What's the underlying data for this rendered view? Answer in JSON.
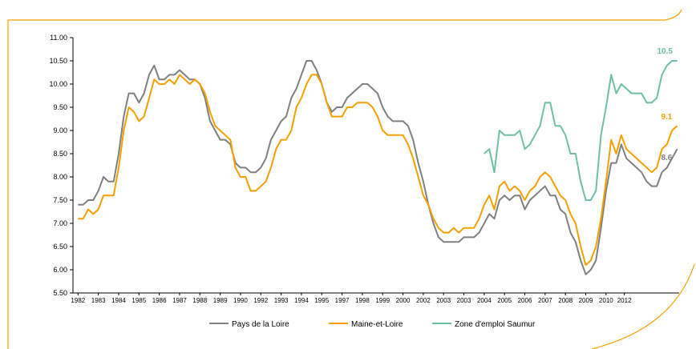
{
  "chart_data": {
    "type": "line",
    "title": "",
    "xlabel": "",
    "ylabel": "",
    "ylim": [
      5.5,
      11.0
    ],
    "y_ticks": [
      "5.50",
      "6.00",
      "6.50",
      "7.00",
      "7.50",
      "8.00",
      "8.50",
      "9.00",
      "9.50",
      "10.00",
      "10.50",
      "11.00"
    ],
    "x_ticks": [
      {
        "label": "1982",
        "x": 1982.0
      },
      {
        "label": "1983",
        "x": 1983.0
      },
      {
        "label": "1984",
        "x": 1984.0
      },
      {
        "label": "1985",
        "x": 1985.0
      },
      {
        "label": "1986",
        "x": 1986.0
      },
      {
        "label": "1987",
        "x": 1987.0
      },
      {
        "label": "1988",
        "x": 1988.0
      },
      {
        "label": "1989",
        "x": 1989.0
      },
      {
        "label": "1990",
        "x": 1990.0
      },
      {
        "label": "1992",
        "x": 1991.0
      },
      {
        "label": "1993",
        "x": 1992.0
      },
      {
        "label": "1994",
        "x": 1993.0
      },
      {
        "label": "1995",
        "x": 1994.0
      },
      {
        "label": "1997",
        "x": 1995.0
      },
      {
        "label": "1998",
        "x": 1996.0
      },
      {
        "label": "1999",
        "x": 1997.0
      },
      {
        "label": "2000",
        "x": 1998.0
      },
      {
        "label": "2002",
        "x": 1999.0
      },
      {
        "label": "2003",
        "x": 2000.0
      },
      {
        "label": "2003",
        "x": 2001.0
      },
      {
        "label": "2004",
        "x": 2002.0
      },
      {
        "label": "2005",
        "x": 2003.0
      },
      {
        "label": "2006",
        "x": 2004.0
      },
      {
        "label": "2007",
        "x": 2005.0
      },
      {
        "label": "2008",
        "x": 2006.0
      },
      {
        "label": "2009",
        "x": 2007.0
      },
      {
        "label": "2010",
        "x": 2008.0
      },
      {
        "label": "2012",
        "x": 2008.9
      }
    ],
    "grid": false,
    "legend_position": "bottom",
    "series": [
      {
        "name": "Pays de la Loire",
        "color": "#808080",
        "end_label": "8.6",
        "points": [
          [
            1982.0,
            7.4
          ],
          [
            1982.25,
            7.4
          ],
          [
            1982.5,
            7.5
          ],
          [
            1982.75,
            7.5
          ],
          [
            1983.0,
            7.7
          ],
          [
            1983.25,
            8.0
          ],
          [
            1983.5,
            7.9
          ],
          [
            1983.75,
            7.9
          ],
          [
            1984.0,
            8.5
          ],
          [
            1984.25,
            9.3
          ],
          [
            1984.5,
            9.8
          ],
          [
            1984.75,
            9.8
          ],
          [
            1985.0,
            9.6
          ],
          [
            1985.25,
            9.8
          ],
          [
            1985.5,
            10.2
          ],
          [
            1985.75,
            10.4
          ],
          [
            1986.0,
            10.1
          ],
          [
            1986.25,
            10.1
          ],
          [
            1986.5,
            10.2
          ],
          [
            1986.75,
            10.2
          ],
          [
            1987.0,
            10.3
          ],
          [
            1987.25,
            10.2
          ],
          [
            1987.5,
            10.1
          ],
          [
            1987.75,
            10.1
          ],
          [
            1988.0,
            10.0
          ],
          [
            1988.25,
            9.7
          ],
          [
            1988.5,
            9.2
          ],
          [
            1988.75,
            9.0
          ],
          [
            1989.0,
            8.8
          ],
          [
            1989.25,
            8.8
          ],
          [
            1989.5,
            8.7
          ],
          [
            1989.75,
            8.3
          ],
          [
            1990.0,
            8.2
          ],
          [
            1990.25,
            8.2
          ],
          [
            1990.5,
            8.1
          ],
          [
            1990.75,
            8.1
          ],
          [
            1991.0,
            8.2
          ],
          [
            1991.25,
            8.4
          ],
          [
            1991.5,
            8.8
          ],
          [
            1991.75,
            9.0
          ],
          [
            1992.0,
            9.2
          ],
          [
            1992.25,
            9.3
          ],
          [
            1992.5,
            9.7
          ],
          [
            1992.75,
            9.9
          ],
          [
            1993.0,
            10.2
          ],
          [
            1993.25,
            10.5
          ],
          [
            1993.5,
            10.5
          ],
          [
            1993.75,
            10.3
          ],
          [
            1994.0,
            10.0
          ],
          [
            1994.25,
            9.6
          ],
          [
            1994.5,
            9.4
          ],
          [
            1994.75,
            9.5
          ],
          [
            1995.0,
            9.5
          ],
          [
            1995.25,
            9.7
          ],
          [
            1995.5,
            9.8
          ],
          [
            1995.75,
            9.9
          ],
          [
            1996.0,
            10.0
          ],
          [
            1996.25,
            10.0
          ],
          [
            1996.5,
            9.9
          ],
          [
            1996.75,
            9.8
          ],
          [
            1997.0,
            9.5
          ],
          [
            1997.25,
            9.3
          ],
          [
            1997.5,
            9.2
          ],
          [
            1997.75,
            9.2
          ],
          [
            1998.0,
            9.2
          ],
          [
            1998.25,
            9.1
          ],
          [
            1998.5,
            8.8
          ],
          [
            1998.75,
            8.3
          ],
          [
            1999.0,
            7.9
          ],
          [
            1999.25,
            7.4
          ],
          [
            1999.5,
            7.0
          ],
          [
            1999.75,
            6.7
          ],
          [
            2000.0,
            6.6
          ],
          [
            2000.25,
            6.6
          ],
          [
            2000.5,
            6.6
          ],
          [
            2000.75,
            6.6
          ],
          [
            2001.0,
            6.7
          ],
          [
            2001.25,
            6.7
          ],
          [
            2001.5,
            6.7
          ],
          [
            2001.75,
            6.8
          ],
          [
            2002.0,
            7.0
          ],
          [
            2002.25,
            7.2
          ],
          [
            2002.5,
            7.1
          ],
          [
            2002.75,
            7.5
          ],
          [
            2003.0,
            7.6
          ],
          [
            2003.25,
            7.5
          ],
          [
            2003.5,
            7.6
          ],
          [
            2003.75,
            7.6
          ],
          [
            2004.0,
            7.3
          ],
          [
            2004.25,
            7.5
          ],
          [
            2004.5,
            7.6
          ],
          [
            2004.75,
            7.7
          ],
          [
            2005.0,
            7.8
          ],
          [
            2005.25,
            7.6
          ],
          [
            2005.5,
            7.6
          ],
          [
            2005.75,
            7.3
          ],
          [
            2006.0,
            7.2
          ],
          [
            2006.25,
            6.8
          ],
          [
            2006.5,
            6.6
          ],
          [
            2006.75,
            6.2
          ],
          [
            2007.0,
            5.9
          ],
          [
            2007.25,
            6.0
          ],
          [
            2007.5,
            6.2
          ],
          [
            2007.75,
            6.9
          ],
          [
            2008.0,
            7.7
          ],
          [
            2008.25,
            8.3
          ],
          [
            2008.5,
            8.3
          ],
          [
            2008.75,
            8.7
          ],
          [
            2009.0,
            8.4
          ],
          [
            2009.25,
            8.3
          ],
          [
            2009.5,
            8.2
          ],
          [
            2009.75,
            8.1
          ],
          [
            2010.0,
            7.9
          ],
          [
            2010.25,
            7.8
          ],
          [
            2010.5,
            7.8
          ],
          [
            2010.75,
            8.1
          ],
          [
            2011.0,
            8.2
          ],
          [
            2011.25,
            8.4
          ],
          [
            2011.5,
            8.6
          ]
        ]
      },
      {
        "name": "Maine-et-Loire",
        "color": "#f5a000",
        "end_label": "9.1",
        "points": [
          [
            1982.0,
            7.1
          ],
          [
            1982.25,
            7.1
          ],
          [
            1982.5,
            7.3
          ],
          [
            1982.75,
            7.2
          ],
          [
            1983.0,
            7.3
          ],
          [
            1983.25,
            7.6
          ],
          [
            1983.5,
            7.6
          ],
          [
            1983.75,
            7.6
          ],
          [
            1984.0,
            8.2
          ],
          [
            1984.25,
            9.0
          ],
          [
            1984.5,
            9.5
          ],
          [
            1984.75,
            9.4
          ],
          [
            1985.0,
            9.2
          ],
          [
            1985.25,
            9.3
          ],
          [
            1985.5,
            9.7
          ],
          [
            1985.75,
            10.1
          ],
          [
            1986.0,
            10.0
          ],
          [
            1986.25,
            10.0
          ],
          [
            1986.5,
            10.1
          ],
          [
            1986.75,
            10.0
          ],
          [
            1987.0,
            10.2
          ],
          [
            1987.25,
            10.1
          ],
          [
            1987.5,
            10.0
          ],
          [
            1987.75,
            10.1
          ],
          [
            1988.0,
            10.0
          ],
          [
            1988.25,
            9.8
          ],
          [
            1988.5,
            9.4
          ],
          [
            1988.75,
            9.1
          ],
          [
            1989.0,
            9.0
          ],
          [
            1989.25,
            8.9
          ],
          [
            1989.5,
            8.8
          ],
          [
            1989.75,
            8.2
          ],
          [
            1990.0,
            8.0
          ],
          [
            1990.25,
            8.0
          ],
          [
            1990.5,
            7.7
          ],
          [
            1990.75,
            7.7
          ],
          [
            1991.0,
            7.8
          ],
          [
            1991.25,
            7.9
          ],
          [
            1991.5,
            8.2
          ],
          [
            1991.75,
            8.6
          ],
          [
            1992.0,
            8.8
          ],
          [
            1992.25,
            8.8
          ],
          [
            1992.5,
            9.0
          ],
          [
            1992.75,
            9.5
          ],
          [
            1993.0,
            9.7
          ],
          [
            1993.25,
            10.0
          ],
          [
            1993.5,
            10.2
          ],
          [
            1993.75,
            10.2
          ],
          [
            1994.0,
            10.0
          ],
          [
            1994.25,
            9.6
          ],
          [
            1994.5,
            9.3
          ],
          [
            1994.75,
            9.3
          ],
          [
            1995.0,
            9.3
          ],
          [
            1995.25,
            9.5
          ],
          [
            1995.5,
            9.5
          ],
          [
            1995.75,
            9.6
          ],
          [
            1996.0,
            9.6
          ],
          [
            1996.25,
            9.6
          ],
          [
            1996.5,
            9.5
          ],
          [
            1996.75,
            9.3
          ],
          [
            1997.0,
            9.0
          ],
          [
            1997.25,
            8.9
          ],
          [
            1997.5,
            8.9
          ],
          [
            1997.75,
            8.9
          ],
          [
            1998.0,
            8.9
          ],
          [
            1998.25,
            8.7
          ],
          [
            1998.5,
            8.4
          ],
          [
            1998.75,
            8.0
          ],
          [
            1999.0,
            7.6
          ],
          [
            1999.25,
            7.4
          ],
          [
            1999.5,
            7.1
          ],
          [
            1999.75,
            6.9
          ],
          [
            2000.0,
            6.8
          ],
          [
            2000.25,
            6.8
          ],
          [
            2000.5,
            6.9
          ],
          [
            2000.75,
            6.8
          ],
          [
            2001.0,
            6.9
          ],
          [
            2001.25,
            6.9
          ],
          [
            2001.5,
            6.9
          ],
          [
            2001.75,
            7.1
          ],
          [
            2002.0,
            7.4
          ],
          [
            2002.25,
            7.6
          ],
          [
            2002.5,
            7.3
          ],
          [
            2002.75,
            7.8
          ],
          [
            2003.0,
            7.9
          ],
          [
            2003.25,
            7.7
          ],
          [
            2003.5,
            7.8
          ],
          [
            2003.75,
            7.7
          ],
          [
            2004.0,
            7.5
          ],
          [
            2004.25,
            7.7
          ],
          [
            2004.5,
            7.8
          ],
          [
            2004.75,
            8.0
          ],
          [
            2005.0,
            8.1
          ],
          [
            2005.25,
            8.0
          ],
          [
            2005.5,
            7.8
          ],
          [
            2005.75,
            7.6
          ],
          [
            2006.0,
            7.5
          ],
          [
            2006.25,
            7.2
          ],
          [
            2006.5,
            7.0
          ],
          [
            2006.75,
            6.5
          ],
          [
            2007.0,
            6.1
          ],
          [
            2007.25,
            6.2
          ],
          [
            2007.5,
            6.5
          ],
          [
            2007.75,
            7.1
          ],
          [
            2008.0,
            7.9
          ],
          [
            2008.25,
            8.8
          ],
          [
            2008.5,
            8.5
          ],
          [
            2008.75,
            8.9
          ],
          [
            2009.0,
            8.6
          ],
          [
            2009.25,
            8.5
          ],
          [
            2009.5,
            8.4
          ],
          [
            2009.75,
            8.3
          ],
          [
            2010.0,
            8.2
          ],
          [
            2010.25,
            8.1
          ],
          [
            2010.5,
            8.2
          ],
          [
            2010.75,
            8.6
          ],
          [
            2011.0,
            8.7
          ],
          [
            2011.25,
            9.0
          ],
          [
            2011.5,
            9.1
          ]
        ]
      },
      {
        "name": "Zone d'emploi Saumur",
        "color": "#6dbfa5",
        "end_label": "10.5",
        "points": [
          [
            2002.0,
            8.5
          ],
          [
            2002.25,
            8.6
          ],
          [
            2002.5,
            8.1
          ],
          [
            2002.75,
            9.0
          ],
          [
            2003.0,
            8.9
          ],
          [
            2003.25,
            8.9
          ],
          [
            2003.5,
            8.9
          ],
          [
            2003.75,
            9.0
          ],
          [
            2004.0,
            8.6
          ],
          [
            2004.25,
            8.7
          ],
          [
            2004.5,
            8.9
          ],
          [
            2004.75,
            9.1
          ],
          [
            2005.0,
            9.6
          ],
          [
            2005.25,
            9.6
          ],
          [
            2005.5,
            9.1
          ],
          [
            2005.75,
            9.1
          ],
          [
            2006.0,
            8.9
          ],
          [
            2006.25,
            8.5
          ],
          [
            2006.5,
            8.5
          ],
          [
            2006.75,
            7.9
          ],
          [
            2007.0,
            7.5
          ],
          [
            2007.25,
            7.5
          ],
          [
            2007.5,
            7.7
          ],
          [
            2007.75,
            8.9
          ],
          [
            2008.0,
            9.5
          ],
          [
            2008.25,
            10.2
          ],
          [
            2008.5,
            9.8
          ],
          [
            2008.75,
            10.0
          ],
          [
            2009.0,
            9.9
          ],
          [
            2009.25,
            9.8
          ],
          [
            2009.5,
            9.8
          ],
          [
            2009.75,
            9.8
          ],
          [
            2010.0,
            9.6
          ],
          [
            2010.25,
            9.6
          ],
          [
            2010.5,
            9.7
          ],
          [
            2010.75,
            10.2
          ],
          [
            2011.0,
            10.4
          ],
          [
            2011.25,
            10.5
          ],
          [
            2011.5,
            10.5
          ]
        ]
      }
    ]
  }
}
